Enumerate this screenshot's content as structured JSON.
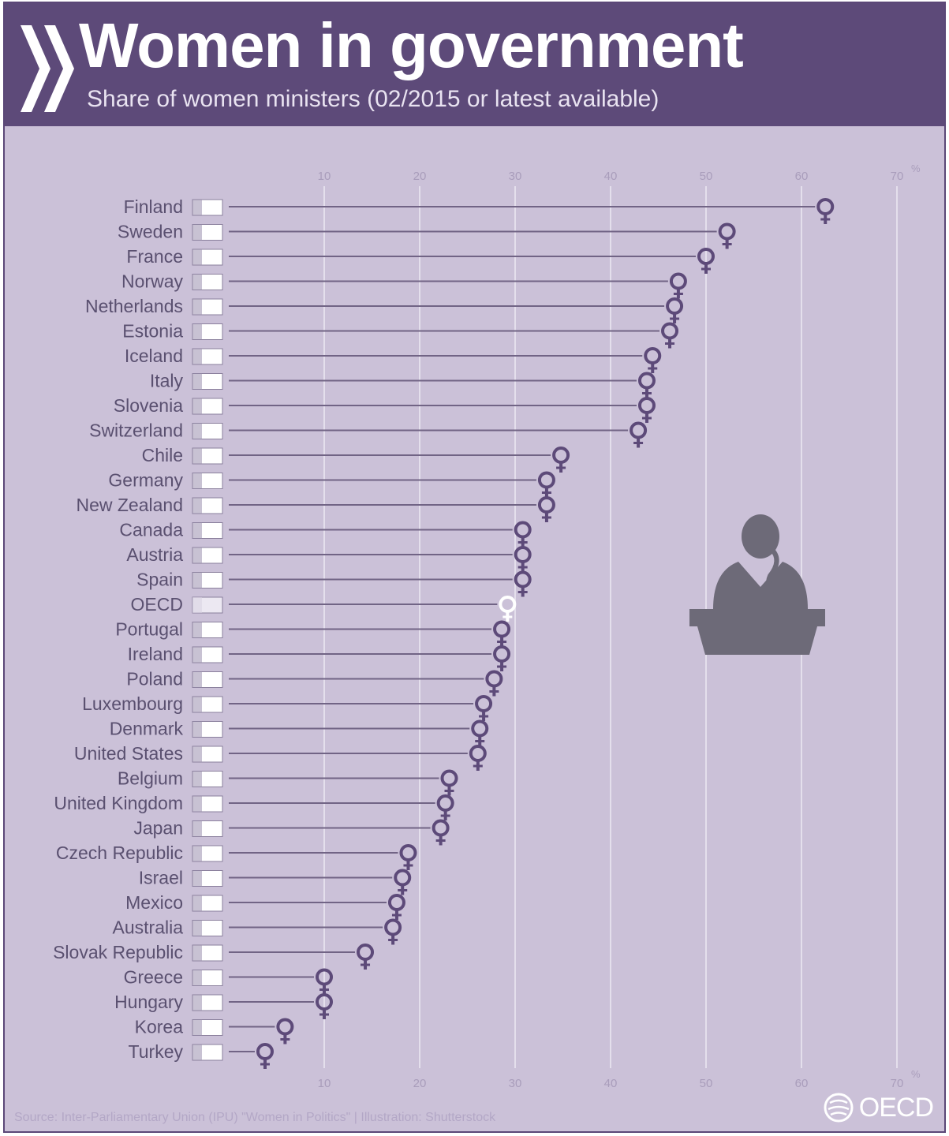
{
  "header": {
    "title": "Women in government",
    "subtitle": "Share of women ministers (02/2015 or latest available)"
  },
  "footer": {
    "source": "Source: Inter-Parliamentary Union (IPU) \"Women in Politics\" | Illustration: Shutterstock",
    "brand": "OECD"
  },
  "colors": {
    "header_bg": "#5d4a79",
    "plot_bg": "#cbc1d8",
    "marker": "#5d4a79",
    "oecd_marker": "#ffffff",
    "line": "#716485",
    "silhouette": "#6d6a78"
  },
  "chart_data": {
    "type": "lollipop",
    "title": "Women in government",
    "subtitle": "Share of women ministers (02/2015 or latest available)",
    "unit": "%",
    "xlim": [
      0,
      70
    ],
    "ticks": [
      10,
      20,
      30,
      40,
      50,
      60,
      70
    ],
    "tick_labels": [
      "10",
      "20",
      "30",
      "40",
      "50",
      "60",
      "70"
    ],
    "gridlines": true,
    "highlight": "OECD",
    "categories": [
      "Finland",
      "Sweden",
      "France",
      "Norway",
      "Netherlands",
      "Estonia",
      "Iceland",
      "Italy",
      "Slovenia",
      "Switzerland",
      "Chile",
      "Germany",
      "New Zealand",
      "Canada",
      "Austria",
      "Spain",
      "OECD",
      "Portugal",
      "Ireland",
      "Poland",
      "Luxembourg",
      "Denmark",
      "United States",
      "Belgium",
      "United Kingdom",
      "Japan",
      "Czech Republic",
      "Israel",
      "Mexico",
      "Australia",
      "Slovak Republic",
      "Greece",
      "Hungary",
      "Korea",
      "Turkey"
    ],
    "values": [
      62.5,
      52.2,
      50.0,
      47.1,
      46.7,
      46.2,
      44.4,
      43.8,
      43.8,
      42.9,
      34.8,
      33.3,
      33.3,
      30.8,
      30.8,
      30.8,
      29.2,
      28.6,
      28.6,
      27.8,
      26.7,
      26.3,
      26.1,
      23.1,
      22.7,
      22.2,
      18.8,
      18.2,
      17.6,
      17.2,
      14.3,
      10.0,
      10.0,
      5.9,
      3.8
    ]
  },
  "flags": [
    "Finland",
    "Sweden",
    "France",
    "Norway",
    "Netherlands",
    "Estonia",
    "Iceland",
    "Italy",
    "Slovenia",
    "Switzerland",
    "Chile",
    "Germany",
    "New Zealand",
    "Canada",
    "Austria",
    "Spain",
    "OECD",
    "Portugal",
    "Ireland",
    "Poland",
    "Luxembourg",
    "Denmark",
    "United States",
    "Belgium",
    "United Kingdom",
    "Japan",
    "Czech Republic",
    "Israel",
    "Mexico",
    "Australia",
    "Slovak Republic",
    "Greece",
    "Hungary",
    "Korea",
    "Turkey"
  ],
  "illustration": "speaker-at-podium-icon"
}
